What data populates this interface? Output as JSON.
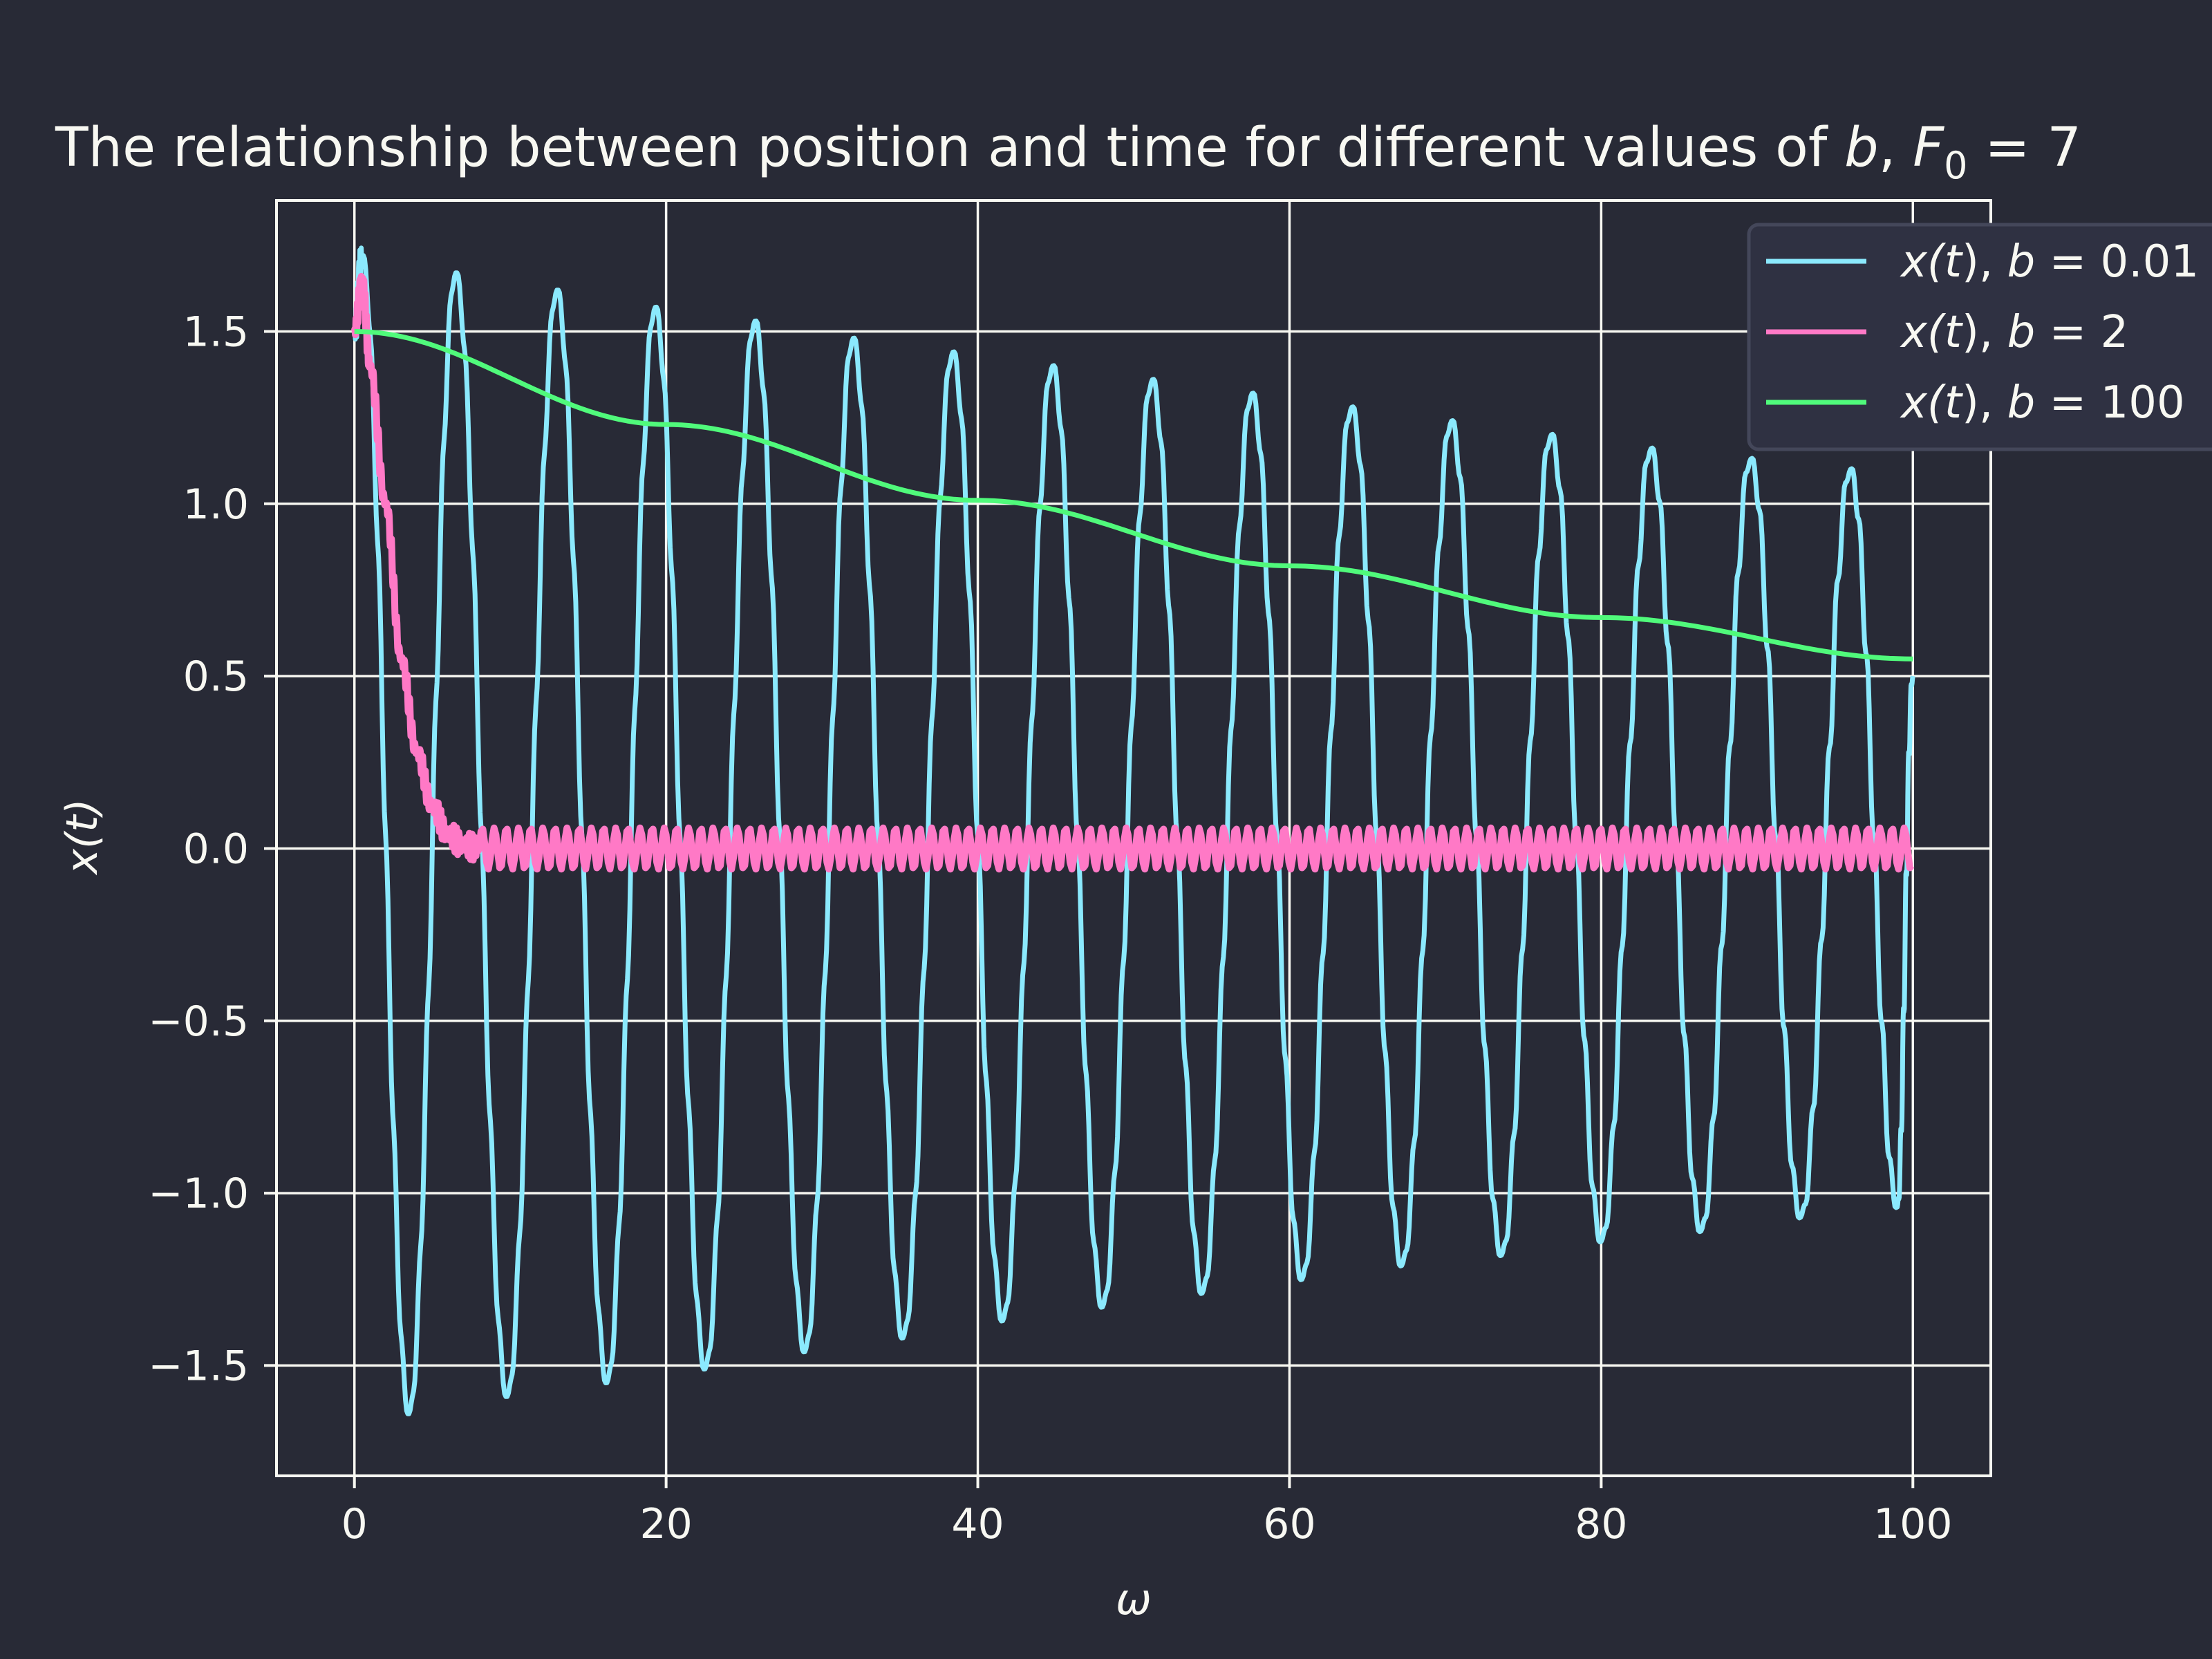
{
  "chart_data": {
    "type": "line",
    "title": "The relationship between position and time for different values of b, F₀ = 7",
    "title_parts": {
      "prefix": "The relationship between position and time for different values of ",
      "var_b": "b",
      "comma": ", ",
      "var_F": "F",
      "subscript": "0",
      "eq": " = 7"
    },
    "xlabel": "ω",
    "ylabel": "x(t)",
    "xlim": [
      -5,
      105
    ],
    "ylim": [
      -1.82,
      1.88
    ],
    "xticks": [
      0,
      20,
      40,
      60,
      80,
      100
    ],
    "xtick_labels": [
      "0",
      "20",
      "40",
      "60",
      "80",
      "100"
    ],
    "yticks": [
      -1.5,
      -1.0,
      -0.5,
      0.0,
      0.5,
      1.0,
      1.5
    ],
    "ytick_labels": [
      "−1.5",
      "−1.0",
      "−0.5",
      "0.0",
      "0.5",
      "1.0",
      "1.5"
    ],
    "grid": true,
    "legend_position": "top-right",
    "colors": {
      "background": "#282a36",
      "foreground": "#f8f8f2",
      "legend_bg": "#2f3142",
      "legend_edge": "#44475a"
    },
    "series": [
      {
        "name": "x(t), b = 0.01",
        "legend": {
          "prefix": "x(",
          "t": "t",
          "mid": "), ",
          "b": "b",
          "eq": " = 0.01"
        },
        "color": "#8be9fd",
        "x": [
          0,
          0.5,
          3.5,
          6.5,
          9.8,
          13,
          16.2,
          19.3,
          22.5,
          25.7,
          28.9,
          32,
          35.2,
          38.4,
          41.6,
          44.8,
          48,
          51.2,
          54.4,
          57.6,
          60.8,
          64,
          67.2,
          70.4,
          73.6,
          76.8,
          80,
          83.2,
          86.4,
          89.6,
          92.8,
          96,
          99,
          100
        ],
        "y": [
          1.5,
          1.72,
          -1.64,
          1.67,
          -1.59,
          1.62,
          -1.55,
          1.57,
          -1.51,
          1.53,
          -1.46,
          1.48,
          -1.42,
          1.44,
          -1.37,
          1.4,
          -1.33,
          1.36,
          -1.29,
          1.32,
          -1.25,
          1.28,
          -1.21,
          1.24,
          -1.18,
          1.2,
          -1.14,
          1.16,
          -1.11,
          1.13,
          -1.07,
          1.1,
          -1.04,
          0.5
        ]
      },
      {
        "name": "x(t), b = 2",
        "legend": {
          "prefix": "x(",
          "t": "t",
          "mid": "), ",
          "b": "b",
          "eq": " = 2"
        },
        "color": "#ff79c6",
        "x": [
          0,
          0.5,
          1,
          2,
          3,
          4,
          5,
          6,
          7,
          8,
          100
        ],
        "y": [
          1.5,
          1.65,
          1.4,
          1.0,
          0.55,
          0.28,
          0.12,
          0.04,
          0.01,
          0.0,
          0.0
        ],
        "steady_amplitude": 0.06
      },
      {
        "name": "x(t), b = 100",
        "legend": {
          "prefix": "x(",
          "t": "t",
          "mid": "), ",
          "b": "b",
          "eq": " = 100"
        },
        "color": "#50fa7b",
        "x": [
          0,
          20,
          40,
          60,
          80,
          100
        ],
        "y": [
          1.5,
          1.23,
          1.01,
          0.82,
          0.67,
          0.55
        ]
      }
    ]
  }
}
